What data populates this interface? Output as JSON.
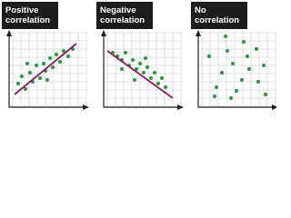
{
  "panels": [
    {
      "label": [
        "Positive",
        "correlation"
      ]
    },
    {
      "label": [
        "Negative",
        "correlation"
      ]
    },
    {
      "label": [
        "No",
        "correlation"
      ]
    }
  ]
}
